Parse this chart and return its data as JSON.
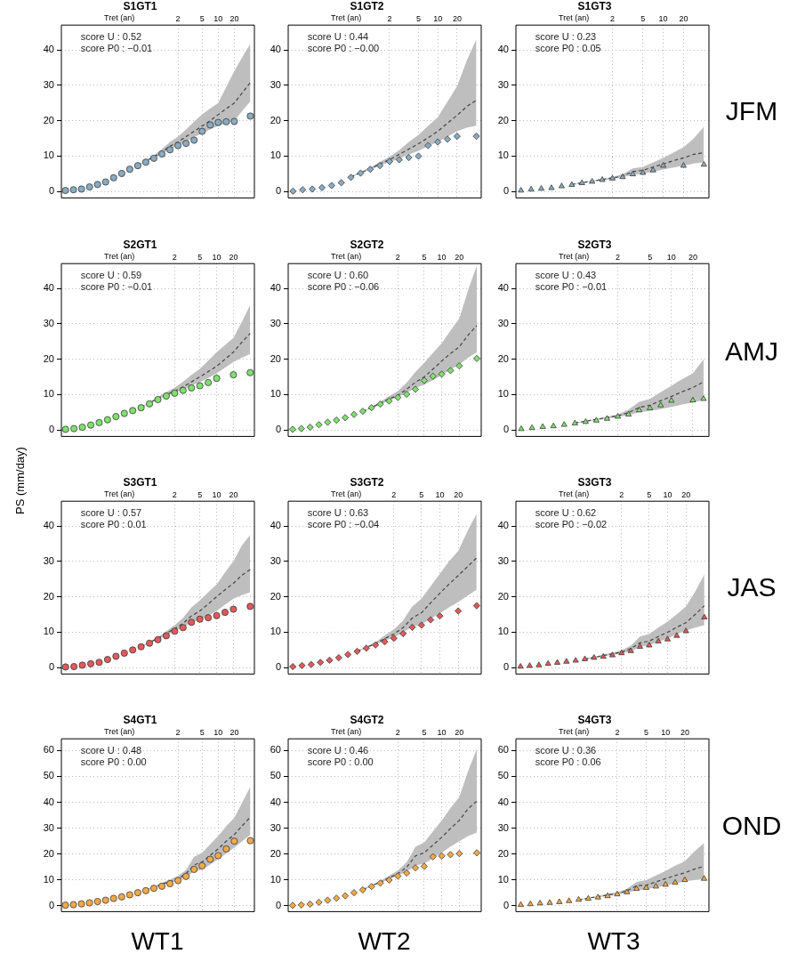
{
  "chart_data": [
    {
      "type": "scatter",
      "title": "S1GT1",
      "xlabel": "Tret (an)",
      "grid": true,
      "categories": [
        null,
        null,
        null,
        null,
        null,
        null,
        null,
        null,
        null,
        null,
        null,
        null,
        null,
        null,
        "2",
        null,
        null,
        "5",
        null,
        "10",
        null,
        "20",
        null,
        null
      ],
      "ylim": [
        -1.8,
        47
      ],
      "yticks": [
        0,
        10,
        20,
        30,
        40
      ],
      "annotations": [
        "score U : 0.52",
        "score P0 : −0.01"
      ],
      "series": [
        {
          "type": "line",
          "line_style": "dashed",
          "color": "#444444",
          "values": [
            null,
            null,
            null,
            null,
            null,
            null,
            null,
            null,
            null,
            7.4,
            8.6,
            9.8,
            11.2,
            12.8,
            14,
            15.5,
            17.0,
            18.5,
            20.0,
            21.7,
            23.4,
            25.0,
            27.9,
            30.8
          ],
          "upper": [
            null,
            null,
            null,
            null,
            null,
            null,
            null,
            null,
            null,
            7.5,
            8.8,
            10.2,
            12,
            14,
            15.5,
            17.5,
            19.7,
            21.8,
            23.4,
            25,
            29.5,
            34,
            38,
            41.7
          ],
          "lower": [
            null,
            null,
            null,
            null,
            null,
            null,
            null,
            null,
            null,
            7.3,
            8.4,
            9.5,
            10.7,
            12.0,
            13.0,
            14.1,
            15.3,
            16.5,
            17.5,
            18.5,
            19.3,
            20.0,
            22.8,
            25.5
          ]
        },
        {
          "type": "scatter",
          "marker": "circle",
          "color": "#8aabc0",
          "values": [
            0.3,
            0.5,
            0.7,
            1.3,
            2.0,
            2.7,
            3.9,
            5.1,
            6.3,
            7.3,
            8.3,
            9.4,
            10.6,
            11.8,
            13.0,
            13.6,
            14.5,
            17.0,
            18.8,
            19.5,
            19.7,
            19.8,
            null,
            21.3
          ]
        }
      ]
    },
    {
      "type": "scatter",
      "title": "S1GT2",
      "xlabel": "Tret (an)",
      "grid": true,
      "categories": [
        null,
        null,
        null,
        null,
        null,
        null,
        null,
        null,
        null,
        null,
        "2",
        null,
        null,
        "5",
        null,
        "10",
        null,
        "20",
        null,
        null
      ],
      "ylim": [
        -1.8,
        47
      ],
      "yticks": [
        0,
        10,
        20,
        30,
        40
      ],
      "annotations": [
        "score U : 0.44",
        "score P0 : −0.00"
      ],
      "series": [
        {
          "type": "line",
          "line_style": "dashed",
          "color": "#444444",
          "values": [
            null,
            null,
            null,
            null,
            null,
            null,
            4.2,
            5.3,
            6.4,
            7.8,
            9.0,
            10.5,
            12.0,
            13.5,
            15.2,
            17.0,
            19.3,
            21.5,
            24,
            25.8
          ],
          "upper": [
            null,
            null,
            null,
            null,
            null,
            null,
            4.3,
            5.5,
            6.8,
            8.4,
            9.8,
            11.7,
            14,
            16,
            18.5,
            21,
            25.4,
            29.7,
            37,
            43
          ],
          "lower": [
            null,
            null,
            null,
            null,
            null,
            null,
            4.1,
            5.1,
            6.2,
            7.3,
            8.3,
            9.3,
            10.4,
            11.5,
            12.8,
            14.0,
            15.5,
            17,
            18,
            18.6
          ]
        },
        {
          "type": "scatter",
          "marker": "diamond",
          "color": "#8aabc0",
          "values": [
            0.1,
            0.5,
            0.7,
            1.1,
            1.7,
            2.5,
            4.0,
            5.2,
            6.3,
            7.3,
            8.5,
            9.0,
            9.6,
            10.0,
            13.0,
            14.0,
            14.8,
            15.6,
            null,
            15.6
          ]
        }
      ]
    },
    {
      "type": "scatter",
      "title": "S1GT3",
      "xlabel": "Tret (an)",
      "grid": true,
      "categories": [
        null,
        null,
        null,
        null,
        null,
        null,
        null,
        null,
        null,
        "2",
        null,
        null,
        "5",
        null,
        "10",
        null,
        "20",
        null,
        null
      ],
      "ylim": [
        -1.8,
        47
      ],
      "yticks": [
        0,
        10,
        20,
        30,
        40
      ],
      "annotations": [
        "score U : 0.23",
        "score P0 : 0.05"
      ],
      "series": [
        {
          "type": "line",
          "line_style": "dashed",
          "color": "#444444",
          "values": [
            null,
            null,
            null,
            null,
            null,
            2.0,
            2.5,
            2.9,
            3.4,
            3.8,
            4.4,
            5.6,
            6.0,
            6.9,
            7.8,
            8.7,
            9.5,
            10.5,
            11.0
          ],
          "upper": [
            null,
            null,
            null,
            null,
            null,
            2.1,
            2.6,
            3.1,
            3.6,
            4.1,
            4.9,
            6.5,
            7.0,
            8.2,
            9.5,
            11.0,
            12.5,
            15,
            18.3
          ],
          "lower": [
            null,
            null,
            null,
            null,
            null,
            1.9,
            2.4,
            2.8,
            3.2,
            3.6,
            4.0,
            4.7,
            5.0,
            5.6,
            6.2,
            6.8,
            7.3,
            7.9,
            8.3
          ]
        },
        {
          "type": "scatter",
          "marker": "triangle",
          "color": "#8aabc0",
          "values": [
            0.3,
            0.6,
            0.8,
            1.0,
            1.5,
            1.9,
            2.4,
            2.8,
            3.3,
            3.7,
            4.1,
            4.9,
            5.3,
            6.0,
            7.3,
            null,
            7.3,
            null,
            7.6
          ]
        }
      ]
    },
    {
      "type": "scatter",
      "title": "S2GT1",
      "xlabel": "Tret (an)",
      "grid": true,
      "categories": [
        null,
        null,
        null,
        null,
        null,
        null,
        null,
        null,
        null,
        null,
        null,
        null,
        null,
        "2",
        null,
        null,
        "5",
        null,
        "10",
        null,
        "20",
        null,
        null
      ],
      "ylim": [
        -1.8,
        47
      ],
      "yticks": [
        0,
        10,
        20,
        30,
        40
      ],
      "annotations": [
        "score U : 0.59",
        "score P0 : −0.01"
      ],
      "series": [
        {
          "type": "line",
          "line_style": "dashed",
          "color": "#444444",
          "values": [
            null,
            null,
            null,
            null,
            null,
            null,
            null,
            null,
            null,
            6.4,
            7.6,
            9.0,
            10.0,
            11.0,
            12.2,
            13.6,
            15.0,
            16.5,
            18.0,
            20,
            22,
            24.8,
            27.3
          ],
          "upper": [
            null,
            null,
            null,
            null,
            null,
            null,
            null,
            null,
            null,
            6.5,
            7.8,
            9.3,
            10.7,
            12.0,
            13.6,
            15.6,
            17.3,
            19.6,
            22,
            24,
            26,
            30.5,
            35.3
          ],
          "lower": [
            null,
            null,
            null,
            null,
            null,
            null,
            null,
            null,
            null,
            6.3,
            7.5,
            8.8,
            9.6,
            10.5,
            11.4,
            12.6,
            13.5,
            14.7,
            16.0,
            17.6,
            19.2,
            20.4,
            21.5
          ]
        },
        {
          "type": "scatter",
          "marker": "circle",
          "color": "#7fe06e",
          "values": [
            0.2,
            0.4,
            0.8,
            1.4,
            2.1,
            2.9,
            3.8,
            4.7,
            5.5,
            6.3,
            7.4,
            8.6,
            9.6,
            10.4,
            11.2,
            11.9,
            12.5,
            13.4,
            14.6,
            null,
            15.6,
            null,
            16.2
          ]
        }
      ]
    },
    {
      "type": "scatter",
      "title": "S2GT2",
      "xlabel": "Tret (an)",
      "grid": true,
      "categories": [
        null,
        null,
        null,
        null,
        null,
        null,
        null,
        null,
        null,
        null,
        null,
        null,
        "2",
        null,
        null,
        "5",
        null,
        "10",
        null,
        "20",
        null,
        null
      ],
      "ylim": [
        -1.8,
        47
      ],
      "yticks": [
        0,
        10,
        20,
        30,
        40
      ],
      "annotations": [
        "score U : 0.60",
        "score P0 : −0.06"
      ],
      "series": [
        {
          "type": "line",
          "line_style": "dashed",
          "color": "#444444",
          "values": [
            null,
            null,
            null,
            null,
            null,
            null,
            null,
            null,
            5.3,
            6.3,
            7.6,
            8.8,
            9.8,
            11.5,
            13.5,
            15.0,
            17.2,
            19.5,
            21.6,
            23.5,
            26.8,
            29.5
          ],
          "upper": [
            null,
            null,
            null,
            null,
            null,
            null,
            null,
            null,
            5.3,
            6.5,
            8.0,
            9.6,
            11.0,
            13.4,
            16.4,
            19.0,
            21.8,
            24.5,
            28.1,
            31.5,
            39.5,
            46.5
          ],
          "lower": [
            null,
            null,
            null,
            null,
            null,
            null,
            null,
            null,
            5.2,
            6.2,
            7.3,
            8.3,
            9.3,
            10.5,
            11.9,
            12.8,
            14.1,
            15.5,
            17.1,
            18.5,
            20.4,
            22
          ]
        },
        {
          "type": "scatter",
          "marker": "diamond",
          "color": "#7fe06e",
          "values": [
            0.2,
            0.4,
            0.8,
            1.5,
            2.2,
            2.8,
            3.5,
            4.4,
            5.3,
            6.3,
            7.3,
            8.2,
            9.2,
            10.1,
            11.5,
            14.0,
            15.2,
            15.8,
            16.8,
            18.1,
            null,
            20.2
          ]
        }
      ]
    },
    {
      "type": "scatter",
      "title": "S2GT3",
      "xlabel": "Tret (an)",
      "grid": true,
      "categories": [
        null,
        null,
        null,
        null,
        null,
        null,
        null,
        null,
        null,
        "2",
        null,
        null,
        "5",
        null,
        "10",
        null,
        "20",
        null
      ],
      "ylim": [
        -1.8,
        47
      ],
      "yticks": [
        0,
        10,
        20,
        30,
        40
      ],
      "annotations": [
        "score U : 0.43",
        "score P0 : −0.01"
      ],
      "series": [
        {
          "type": "line",
          "line_style": "dashed",
          "color": "#444444",
          "values": [
            null,
            null,
            null,
            null,
            null,
            2.0,
            2.5,
            3.0,
            3.5,
            4.0,
            4.9,
            6.4,
            7.0,
            8.3,
            9.5,
            10.8,
            12.0,
            13.6
          ],
          "upper": [
            null,
            null,
            null,
            null,
            null,
            2.1,
            2.6,
            3.2,
            3.8,
            4.4,
            5.8,
            8.0,
            8.8,
            10.7,
            12.5,
            14.4,
            16.0,
            20.0
          ],
          "lower": [
            null,
            null,
            null,
            null,
            null,
            1.9,
            2.3,
            2.8,
            3.2,
            3.7,
            4.2,
            5.0,
            5.4,
            5.9,
            6.5,
            7.2,
            7.8,
            8.5
          ]
        },
        {
          "type": "scatter",
          "marker": "triangle",
          "color": "#7fe06e",
          "values": [
            0.3,
            0.6,
            0.9,
            1.1,
            1.5,
            1.9,
            2.3,
            2.7,
            3.2,
            3.8,
            4.4,
            5.6,
            6.2,
            7.0,
            8.3,
            null,
            8.4,
            8.8
          ]
        }
      ]
    },
    {
      "type": "scatter",
      "title": "S3GT1",
      "xlabel": "Tret (an)",
      "grid": true,
      "categories": [
        null,
        null,
        null,
        null,
        null,
        null,
        null,
        null,
        null,
        null,
        null,
        null,
        null,
        "2",
        null,
        null,
        "5",
        null,
        "10",
        null,
        "20",
        null,
        null
      ],
      "ylim": [
        -1.8,
        47
      ],
      "yticks": [
        0,
        10,
        20,
        30,
        40
      ],
      "annotations": [
        "score U : 0.57",
        "score P0 : 0.01"
      ],
      "series": [
        {
          "type": "line",
          "line_style": "dashed",
          "color": "#444444",
          "values": [
            null,
            null,
            null,
            null,
            null,
            null,
            null,
            null,
            null,
            5.9,
            7.1,
            8.3,
            9.7,
            11.0,
            12.5,
            14.6,
            16.0,
            18.0,
            20.0,
            22.0,
            23.8,
            26.1,
            27.7
          ],
          "upper": [
            null,
            null,
            null,
            null,
            null,
            null,
            null,
            null,
            null,
            6.0,
            7.3,
            8.6,
            10.3,
            12.0,
            14.1,
            17.0,
            19.0,
            21.3,
            23.5,
            26.9,
            30.0,
            34.5,
            37.5
          ],
          "lower": [
            null,
            null,
            null,
            null,
            null,
            null,
            null,
            null,
            null,
            5.8,
            6.9,
            8.0,
            9.1,
            10.3,
            11.3,
            12.8,
            13.5,
            14.7,
            16.0,
            17.8,
            19.5,
            20.5,
            21.3
          ]
        },
        {
          "type": "scatter",
          "marker": "circle",
          "color": "#e05a5a",
          "values": [
            0.2,
            0.3,
            0.7,
            1.1,
            1.5,
            2.3,
            3.2,
            4.1,
            5.0,
            5.9,
            6.9,
            7.9,
            9.0,
            10.3,
            11.3,
            12.8,
            13.7,
            14.1,
            14.7,
            15.6,
            16.5,
            null,
            17.3
          ]
        }
      ]
    },
    {
      "type": "scatter",
      "title": "S3GT2",
      "xlabel": "Tret (an)",
      "grid": true,
      "categories": [
        null,
        null,
        null,
        null,
        null,
        null,
        null,
        null,
        null,
        null,
        null,
        "2",
        null,
        null,
        "5",
        null,
        "10",
        null,
        "20",
        null,
        null
      ],
      "ylim": [
        -1.8,
        47
      ],
      "yticks": [
        0,
        10,
        20,
        30,
        40
      ],
      "annotations": [
        "score U : 0.63",
        "score P0 : −0.04"
      ],
      "series": [
        {
          "type": "line",
          "line_style": "dashed",
          "color": "#444444",
          "values": [
            null,
            null,
            null,
            null,
            null,
            null,
            null,
            4.7,
            5.7,
            6.8,
            8.2,
            9.5,
            11.3,
            14.0,
            15.5,
            18.3,
            21.0,
            23.6,
            26.0,
            28.5,
            31.0
          ],
          "upper": [
            null,
            null,
            null,
            null,
            null,
            null,
            null,
            4.8,
            5.9,
            7.2,
            9.1,
            10.8,
            13.3,
            17.3,
            19.5,
            23.0,
            26.5,
            30.0,
            33.0,
            38.5,
            43.5
          ],
          "lower": [
            null,
            null,
            null,
            null,
            null,
            null,
            null,
            4.6,
            5.5,
            6.5,
            7.6,
            8.6,
            9.9,
            11.6,
            12.2,
            13.8,
            15.3,
            17.0,
            18.5,
            20.3,
            22.0
          ]
        },
        {
          "type": "scatter",
          "marker": "diamond",
          "color": "#e05a5a",
          "values": [
            0.3,
            0.6,
            0.9,
            1.5,
            2.1,
            2.8,
            3.7,
            4.6,
            5.5,
            6.4,
            7.3,
            8.3,
            9.6,
            11.4,
            12.0,
            13.5,
            14.6,
            null,
            16.0,
            null,
            17.5
          ]
        }
      ]
    },
    {
      "type": "scatter",
      "title": "S3GT3",
      "xlabel": "Tret (an)",
      "grid": true,
      "categories": [
        null,
        null,
        null,
        null,
        null,
        null,
        null,
        null,
        null,
        null,
        null,
        "2",
        null,
        null,
        "5",
        null,
        "10",
        null,
        "20",
        null,
        null
      ],
      "ylim": [
        -1.8,
        47
      ],
      "yticks": [
        0,
        10,
        20,
        30,
        40
      ],
      "annotations": [
        "score U : 0.62",
        "score P0 : −0.02"
      ],
      "series": [
        {
          "type": "line",
          "line_style": "dashed",
          "color": "#444444",
          "values": [
            null,
            null,
            null,
            null,
            null,
            null,
            null,
            2.4,
            2.9,
            3.4,
            3.9,
            4.4,
            5.4,
            7.0,
            7.5,
            8.8,
            10.0,
            11.4,
            12.7,
            15.0,
            17.5
          ],
          "upper": [
            null,
            null,
            null,
            null,
            null,
            null,
            null,
            2.5,
            3.1,
            3.7,
            4.3,
            4.9,
            6.2,
            8.8,
            9.5,
            11.3,
            13.0,
            15.1,
            17.3,
            21.5,
            26.3
          ],
          "lower": [
            null,
            null,
            null,
            null,
            null,
            null,
            null,
            2.3,
            2.7,
            3.2,
            3.6,
            4.0,
            4.6,
            5.9,
            6.3,
            7.3,
            8.3,
            9.4,
            10.5,
            11.3,
            12.0
          ]
        },
        {
          "type": "scatter",
          "marker": "triangle",
          "color": "#e05a5a",
          "values": [
            0.3,
            0.5,
            0.7,
            1.1,
            1.4,
            1.7,
            2.0,
            2.4,
            2.8,
            3.1,
            3.5,
            4.1,
            4.7,
            5.9,
            6.3,
            7.4,
            8.0,
            9.0,
            10.3,
            null,
            14.2
          ]
        }
      ]
    },
    {
      "type": "scatter",
      "title": "S4GT1",
      "xlabel": "Tret (an)",
      "grid": true,
      "categories": [
        null,
        null,
        null,
        null,
        null,
        null,
        null,
        null,
        null,
        null,
        null,
        null,
        null,
        null,
        "2",
        null,
        null,
        "5",
        null,
        "10",
        null,
        "20",
        null,
        null
      ],
      "ylim": [
        -2.2,
        64.5
      ],
      "yticks": [
        0,
        10,
        20,
        30,
        40,
        50,
        60
      ],
      "annotations": [
        "score U : 0.48",
        "score P0 : 0.00"
      ],
      "series": [
        {
          "type": "line",
          "line_style": "dashed",
          "color": "#444444",
          "values": [
            null,
            null,
            null,
            null,
            null,
            null,
            null,
            null,
            null,
            null,
            6.2,
            7.2,
            8.5,
            9.3,
            10.5,
            12.5,
            15.8,
            17.0,
            19.5,
            22.0,
            25.0,
            27.5,
            31.0,
            34.3
          ],
          "upper": [
            null,
            null,
            null,
            null,
            null,
            null,
            null,
            null,
            null,
            null,
            6.2,
            7.4,
            8.8,
            10.2,
            11.5,
            13.9,
            19.0,
            20.5,
            23.8,
            27.0,
            30.8,
            34.0,
            40.0,
            46.0
          ],
          "lower": [
            null,
            null,
            null,
            null,
            null,
            null,
            null,
            null,
            null,
            null,
            6.0,
            6.9,
            8.0,
            9.0,
            9.8,
            11.1,
            13.4,
            14.0,
            16.0,
            18.0,
            20.3,
            22.5,
            25.0,
            27.5
          ]
        },
        {
          "type": "scatter",
          "marker": "circle",
          "color": "#f2a94a",
          "values": [
            0.3,
            0.5,
            0.8,
            1.2,
            1.7,
            2.2,
            2.9,
            3.5,
            4.3,
            5.1,
            5.9,
            6.8,
            7.6,
            8.6,
            9.8,
            11.4,
            14.1,
            15.5,
            18.0,
            19.4,
            22.0,
            25.0,
            null,
            25.2
          ]
        }
      ]
    },
    {
      "type": "scatter",
      "title": "S4GT2",
      "xlabel": "Tret (an)",
      "grid": true,
      "categories": [
        null,
        null,
        null,
        null,
        null,
        null,
        null,
        null,
        null,
        null,
        null,
        null,
        "2",
        null,
        null,
        "5",
        null,
        "10",
        null,
        "20",
        null,
        null
      ],
      "ylim": [
        -2.2,
        64.5
      ],
      "yticks": [
        0,
        10,
        20,
        30,
        40,
        50,
        60
      ],
      "annotations": [
        "score U : 0.46",
        "score P0 : 0.00"
      ],
      "series": [
        {
          "type": "line",
          "line_style": "dashed",
          "color": "#444444",
          "values": [
            null,
            null,
            null,
            null,
            null,
            null,
            null,
            null,
            6.3,
            7.8,
            9.2,
            10.8,
            12.5,
            14.9,
            19.3,
            20.5,
            23.5,
            26.5,
            29.9,
            33.0,
            37.5,
            40.5
          ],
          "upper": [
            null,
            null,
            null,
            null,
            null,
            null,
            null,
            null,
            6.5,
            8.1,
            9.6,
            11.7,
            13.7,
            16.8,
            22.8,
            24.5,
            28.8,
            33.0,
            37.8,
            42.0,
            52,
            60.5
          ],
          "lower": [
            null,
            null,
            null,
            null,
            null,
            null,
            null,
            null,
            6.1,
            7.5,
            8.9,
            10.3,
            11.8,
            13.1,
            15.6,
            16.3,
            18.4,
            20.5,
            22.9,
            25.0,
            27,
            28.3
          ]
        },
        {
          "type": "scatter",
          "marker": "diamond",
          "color": "#f2a94a",
          "values": [
            0.2,
            0.4,
            0.7,
            1.4,
            2.2,
            3.0,
            3.9,
            5.1,
            6.2,
            7.5,
            8.8,
            10.0,
            11.5,
            12.7,
            14.7,
            15.3,
            19.0,
            19.3,
            19.8,
            20.2,
            null,
            20.5
          ]
        }
      ]
    },
    {
      "type": "scatter",
      "title": "S4GT3",
      "xlabel": "Tret (an)",
      "grid": true,
      "categories": [
        null,
        null,
        null,
        null,
        null,
        null,
        null,
        null,
        null,
        null,
        "2",
        null,
        null,
        "5",
        null,
        "10",
        null,
        "20",
        null,
        null
      ],
      "ylim": [
        -2.2,
        64.5
      ],
      "yticks": [
        0,
        10,
        20,
        30,
        40,
        50,
        60
      ],
      "annotations": [
        "score U : 0.36",
        "score P0 : 0.06"
      ],
      "series": [
        {
          "type": "line",
          "line_style": "dashed",
          "color": "#444444",
          "values": [
            null,
            null,
            null,
            null,
            null,
            null,
            2.4,
            3.0,
            3.6,
            4.2,
            4.8,
            5.8,
            7.8,
            8.0,
            9.3,
            10.5,
            11.7,
            12.8,
            14.2,
            15.3
          ],
          "upper": [
            null,
            null,
            null,
            null,
            null,
            null,
            2.5,
            3.2,
            3.8,
            4.6,
            5.3,
            6.6,
            9.3,
            10.0,
            11.8,
            13.5,
            15.5,
            17.3,
            21.0,
            24.3
          ],
          "lower": [
            null,
            null,
            null,
            null,
            null,
            null,
            2.3,
            2.8,
            3.4,
            3.9,
            4.4,
            5.0,
            6.1,
            6.4,
            7.1,
            7.8,
            8.7,
            9.5,
            10.0,
            10.5
          ]
        },
        {
          "type": "scatter",
          "marker": "triangle",
          "color": "#f2a94a",
          "values": [
            0.4,
            0.7,
            1.0,
            1.2,
            1.5,
            1.9,
            2.4,
            2.8,
            3.3,
            3.8,
            4.5,
            5.3,
            6.6,
            7.0,
            7.5,
            8.2,
            9.0,
            10.0,
            null,
            10.5
          ]
        }
      ]
    },
    {
      "type": "other",
      "ylabel": "PS (mm/day)",
      "annotations": [
        "JFM",
        "AMJ",
        "JAS",
        "OND",
        "WT1",
        "WT2",
        "WT3"
      ]
    }
  ]
}
